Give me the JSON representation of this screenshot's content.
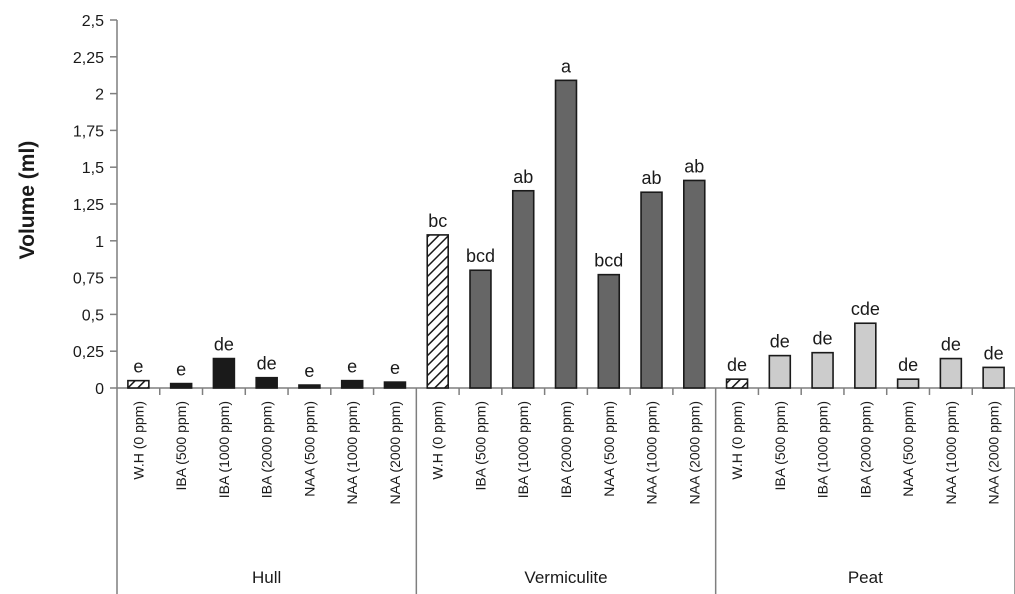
{
  "chart_data": {
    "type": "bar",
    "ylabel": "Volume (ml)",
    "ylim": [
      0,
      2.5
    ],
    "yticks": [
      "0",
      "0,25",
      "0,5",
      "0,75",
      "1",
      "1,25",
      "1,5",
      "1,75",
      "2",
      "2,25",
      "2,5"
    ],
    "groups": [
      {
        "name": "Hull",
        "fill": "#1a1a1a",
        "categories": [
          "W.H (0 ppm)",
          "IBA (500 ppm)",
          "IBA (1000 ppm)",
          "IBA (2000 ppm)",
          "NAA (500 ppm)",
          "NAA (1000 ppm)",
          "NAA (2000 ppm)"
        ],
        "values": [
          0.05,
          0.03,
          0.2,
          0.07,
          0.02,
          0.05,
          0.04
        ],
        "labels": [
          "e",
          "e",
          "de",
          "de",
          "e",
          "e",
          "e"
        ]
      },
      {
        "name": "Vermiculite",
        "fill": "#666666",
        "categories": [
          "W.H (0 ppm)",
          "IBA (500 ppm)",
          "IBA (1000 ppm)",
          "IBA (2000 ppm)",
          "NAA (500 ppm)",
          "NAA (1000 ppm)",
          "NAA (2000 ppm)"
        ],
        "values": [
          1.04,
          0.8,
          1.34,
          2.09,
          0.77,
          1.33,
          1.41
        ],
        "labels": [
          "bc",
          "bcd",
          "ab",
          "a",
          "bcd",
          "ab",
          "ab"
        ]
      },
      {
        "name": "Peat",
        "fill": "#cccccc",
        "categories": [
          "W.H (0 ppm)",
          "IBA (500 ppm)",
          "IBA (1000 ppm)",
          "IBA (2000 ppm)",
          "NAA (500 ppm)",
          "NAA (1000 ppm)",
          "NAA (2000 ppm)"
        ],
        "values": [
          0.06,
          0.22,
          0.24,
          0.44,
          0.06,
          0.2,
          0.14
        ],
        "labels": [
          "de",
          "de",
          "de",
          "cde",
          "de",
          "de",
          "de"
        ]
      }
    ],
    "control_pattern": "diagonal-hatch",
    "grid": false,
    "legend": "none"
  }
}
